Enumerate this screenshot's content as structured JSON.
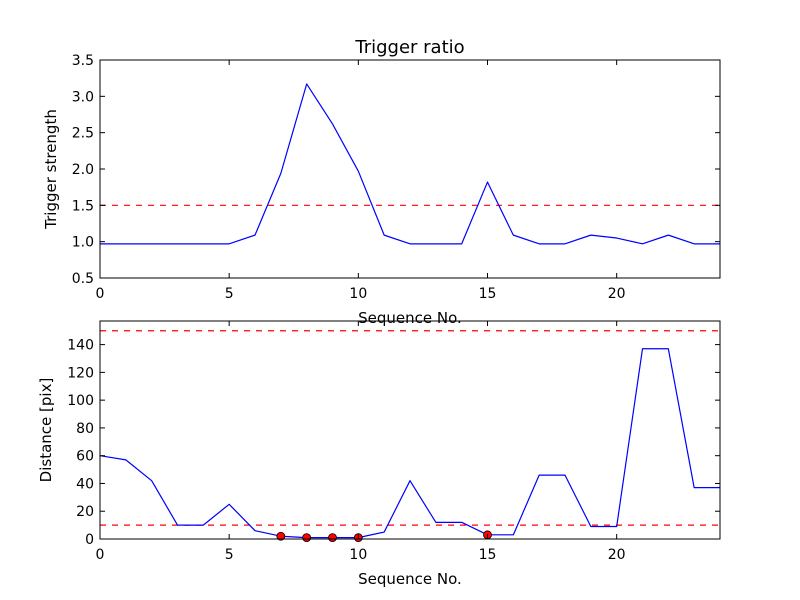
{
  "chart_data": [
    {
      "type": "line",
      "title": "Trigger ratio",
      "xlabel": "Sequence No.",
      "ylabel": "Trigger strength",
      "xlim": [
        0,
        24
      ],
      "ylim": [
        0.5,
        3.5
      ],
      "xticks": [
        0,
        5,
        10,
        15,
        20
      ],
      "xtick_labels": [
        "0",
        "5",
        "10",
        "15",
        "20"
      ],
      "yticks": [
        0.5,
        1.0,
        1.5,
        2.0,
        2.5,
        3.0,
        3.5
      ],
      "ytick_labels": [
        "0.5",
        "1.0",
        "1.5",
        "2.0",
        "2.5",
        "3.0",
        "3.5"
      ],
      "grid": false,
      "x": [
        0,
        1,
        2,
        3,
        4,
        5,
        6,
        7,
        8,
        9,
        10,
        11,
        12,
        13,
        14,
        15,
        16,
        17,
        18,
        19,
        20,
        21,
        22,
        23,
        24
      ],
      "series": [
        {
          "color": "#0000ff",
          "values": [
            0.97,
            0.97,
            0.97,
            0.97,
            0.97,
            0.97,
            1.09,
            1.94,
            3.17,
            2.62,
            1.97,
            1.09,
            0.97,
            0.97,
            0.97,
            1.82,
            1.09,
            0.97,
            0.97,
            1.09,
            1.05,
            0.97,
            1.09,
            0.97,
            0.97
          ]
        }
      ],
      "threshold_lines": [
        {
          "y": 1.5,
          "color": "#ff0000",
          "style": "dashed"
        }
      ]
    },
    {
      "type": "line",
      "title": "",
      "xlabel": "Sequence No.",
      "ylabel": "Distance [pix]",
      "xlim": [
        0,
        24
      ],
      "ylim": [
        0,
        157
      ],
      "xticks": [
        0,
        5,
        10,
        15,
        20
      ],
      "xtick_labels": [
        "0",
        "5",
        "10",
        "15",
        "20"
      ],
      "yticks": [
        0,
        20,
        40,
        60,
        80,
        100,
        120,
        140
      ],
      "ytick_labels": [
        "0",
        "20",
        "40",
        "60",
        "80",
        "100",
        "120",
        "140"
      ],
      "grid": false,
      "x": [
        0,
        1,
        2,
        3,
        4,
        5,
        6,
        7,
        8,
        9,
        10,
        11,
        12,
        13,
        14,
        15,
        16,
        17,
        18,
        19,
        20,
        21,
        22,
        23,
        24
      ],
      "series": [
        {
          "color": "#0000ff",
          "values": [
            60,
            57,
            42,
            10,
            10,
            25,
            6,
            2,
            1,
            1,
            1,
            5,
            42,
            12,
            12,
            3,
            3,
            46,
            46,
            9,
            9,
            137,
            137,
            37,
            37
          ]
        }
      ],
      "markers": {
        "color": "#ff0000",
        "x": [
          7,
          8,
          9,
          10,
          15
        ],
        "y": [
          2,
          1,
          1,
          1,
          3
        ]
      },
      "threshold_lines": [
        {
          "y": 10,
          "color": "#ff0000",
          "style": "dashed"
        },
        {
          "y": 150,
          "color": "#ff0000",
          "style": "dashed"
        }
      ]
    }
  ]
}
